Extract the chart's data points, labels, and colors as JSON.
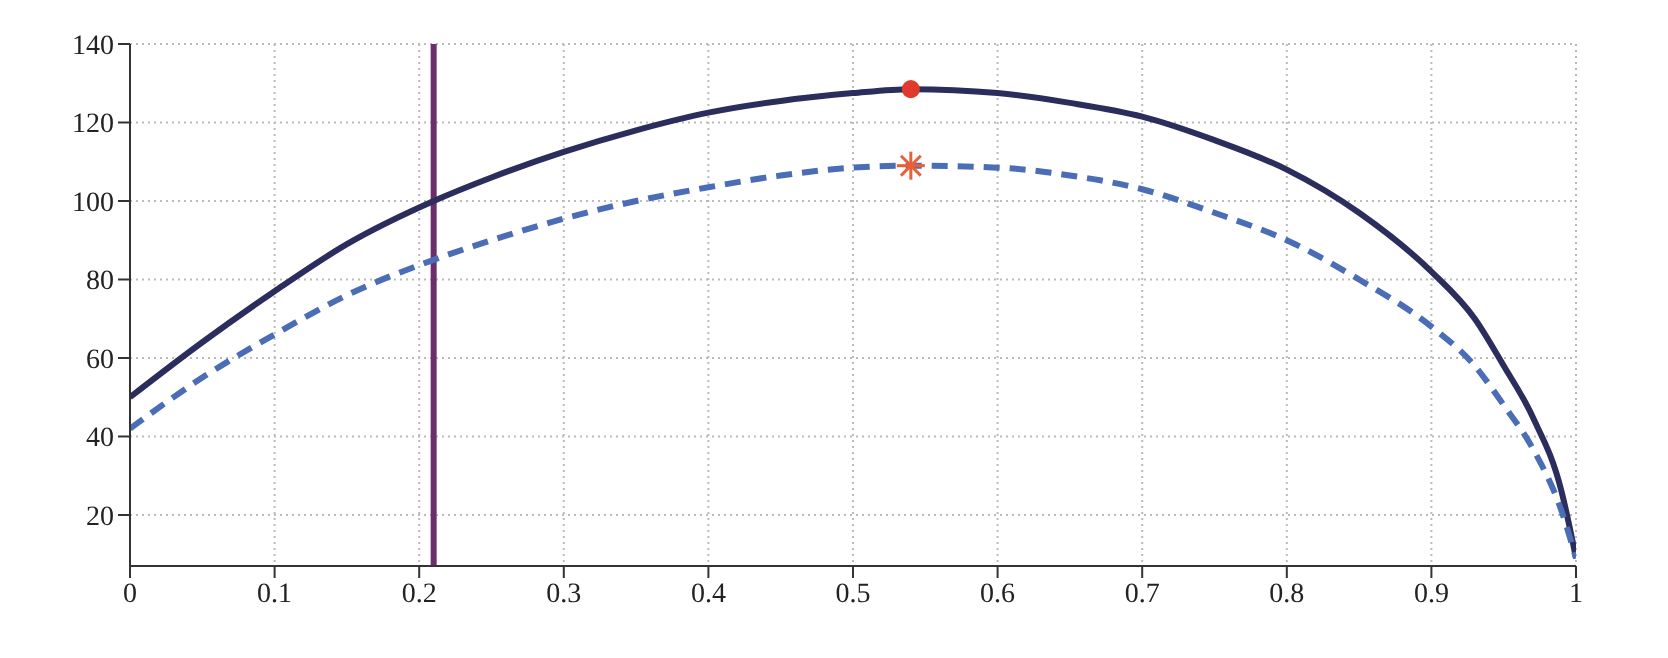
{
  "chart_data": {
    "type": "line",
    "xlim": [
      0,
      1
    ],
    "xticks": [
      0,
      0.1,
      0.2,
      0.3,
      0.4,
      0.5,
      0.6,
      0.7,
      0.8,
      0.9,
      1
    ],
    "ylim": [
      7,
      140
    ],
    "yticks": [
      20,
      40,
      60,
      80,
      100,
      120,
      140
    ],
    "grid": true,
    "series": [
      {
        "color": "#2b2d5c",
        "line_style": "solid",
        "marker": "none",
        "x": [
          0,
          0.05,
          0.1,
          0.15,
          0.21,
          0.25,
          0.3,
          0.35,
          0.4,
          0.45,
          0.5,
          0.54,
          0.6,
          0.65,
          0.7,
          0.75,
          0.8,
          0.85,
          0.9,
          0.93,
          0.95,
          0.97,
          0.99,
          1
        ],
        "values": [
          50,
          64,
          77,
          89,
          100,
          106,
          112.5,
          118,
          122.5,
          125.5,
          127.5,
          128.5,
          127.5,
          125,
          121.5,
          115.5,
          108,
          97,
          82,
          70,
          58,
          45,
          26,
          9
        ]
      },
      {
        "color": "#4a6db5",
        "line_style": "dashed",
        "marker": "none",
        "x": [
          0,
          0.05,
          0.1,
          0.15,
          0.21,
          0.25,
          0.3,
          0.35,
          0.4,
          0.45,
          0.5,
          0.54,
          0.6,
          0.65,
          0.7,
          0.75,
          0.8,
          0.85,
          0.9,
          0.93,
          0.95,
          0.97,
          0.99,
          1
        ],
        "values": [
          42,
          55,
          66,
          76,
          85,
          90,
          95.5,
          100,
          103.5,
          106.5,
          108.5,
          109,
          108.5,
          106.5,
          103,
          97,
          90,
          80,
          68,
          58,
          48,
          37,
          21,
          9
        ]
      },
      {
        "type": "scatter",
        "color": "#e03a2e",
        "marker": "circle",
        "x": [
          0.54
        ],
        "values": [
          128.5
        ]
      },
      {
        "type": "scatter",
        "color": "#e8603a",
        "marker": "cross",
        "x": [
          0.54
        ],
        "values": [
          109
        ]
      }
    ],
    "ref_lines": [
      {
        "axis": "x",
        "value": 0.21,
        "color": "#6b2d6b"
      }
    ]
  }
}
